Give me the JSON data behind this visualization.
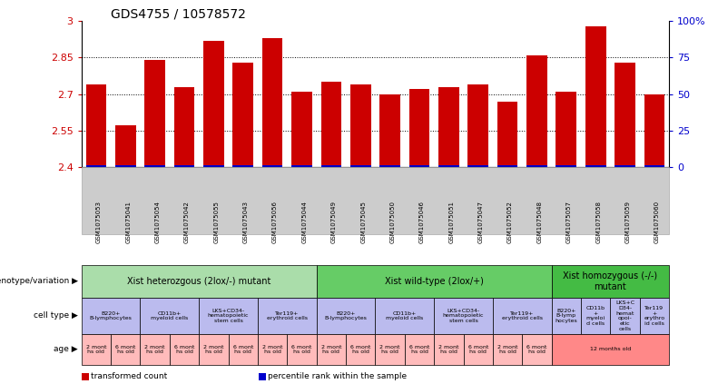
{
  "title": "GDS4755 / 10578572",
  "samples": [
    "GSM1075053",
    "GSM1075041",
    "GSM1075054",
    "GSM1075042",
    "GSM1075055",
    "GSM1075043",
    "GSM1075056",
    "GSM1075044",
    "GSM1075049",
    "GSM1075045",
    "GSM1075050",
    "GSM1075046",
    "GSM1075051",
    "GSM1075047",
    "GSM1075052",
    "GSM1075048",
    "GSM1075057",
    "GSM1075058",
    "GSM1075059",
    "GSM1075060"
  ],
  "values": [
    2.74,
    2.57,
    2.84,
    2.73,
    2.92,
    2.83,
    2.93,
    2.71,
    2.75,
    2.74,
    2.7,
    2.72,
    2.73,
    2.74,
    2.67,
    2.86,
    2.71,
    2.98,
    2.83,
    2.7
  ],
  "ylim": [
    2.4,
    3.0
  ],
  "yticks": [
    2.4,
    2.55,
    2.7,
    2.85,
    3.0
  ],
  "ytick_labels": [
    "2.4",
    "2.55",
    "2.7",
    "2.85",
    "3"
  ],
  "y2ticks": [
    0,
    25,
    50,
    75,
    100
  ],
  "y2tick_labels": [
    "0",
    "25",
    "50",
    "75",
    "100%"
  ],
  "bar_color": "#cc0000",
  "percentile_color": "#0000cc",
  "genotype_groups": [
    {
      "label": "Xist heterozgous (2lox/-) mutant",
      "start": 0,
      "end": 8,
      "color": "#aaddaa"
    },
    {
      "label": "Xist wild-type (2lox/+)",
      "start": 8,
      "end": 16,
      "color": "#66cc66"
    },
    {
      "label": "Xist homozygous (-/-)\nmutant",
      "start": 16,
      "end": 20,
      "color": "#44bb44"
    }
  ],
  "celltype_groups": [
    {
      "label": "B220+\nB-lymphocytes",
      "start": 0,
      "end": 2,
      "color": "#bbbbee"
    },
    {
      "label": "CD11b+\nmyeloid cells",
      "start": 2,
      "end": 4,
      "color": "#bbbbee"
    },
    {
      "label": "LKS+CD34-\nhematopoietic\nstem cells",
      "start": 4,
      "end": 6,
      "color": "#bbbbee"
    },
    {
      "label": "Ter119+\nerythroid cells",
      "start": 6,
      "end": 8,
      "color": "#bbbbee"
    },
    {
      "label": "B220+\nB-lymphocytes",
      "start": 8,
      "end": 10,
      "color": "#bbbbee"
    },
    {
      "label": "CD11b+\nmyeloid cells",
      "start": 10,
      "end": 12,
      "color": "#bbbbee"
    },
    {
      "label": "LKS+CD34-\nhematopoietic\nstem cells",
      "start": 12,
      "end": 14,
      "color": "#bbbbee"
    },
    {
      "label": "Ter119+\nerythroid cells",
      "start": 14,
      "end": 16,
      "color": "#bbbbee"
    },
    {
      "label": "B220+\nB-lymp\nhocytes",
      "start": 16,
      "end": 17,
      "color": "#bbbbee"
    },
    {
      "label": "CD11b\n+\nmyeloi\nd cells",
      "start": 17,
      "end": 18,
      "color": "#bbbbee"
    },
    {
      "label": "LKS+C\nD34-\nhemat\nopoi-\netic\ncells",
      "start": 18,
      "end": 19,
      "color": "#bbbbee"
    },
    {
      "label": "Ter119\n+\nerythro\nid cells",
      "start": 19,
      "end": 20,
      "color": "#bbbbee"
    }
  ],
  "age_groups": [
    {
      "label": "2 mont\nhs old",
      "start": 0,
      "end": 1,
      "color": "#ffbbbb"
    },
    {
      "label": "6 mont\nhs old",
      "start": 1,
      "end": 2,
      "color": "#ffbbbb"
    },
    {
      "label": "2 mont\nhs old",
      "start": 2,
      "end": 3,
      "color": "#ffbbbb"
    },
    {
      "label": "6 mont\nhs old",
      "start": 3,
      "end": 4,
      "color": "#ffbbbb"
    },
    {
      "label": "2 mont\nhs old",
      "start": 4,
      "end": 5,
      "color": "#ffbbbb"
    },
    {
      "label": "6 mont\nhs old",
      "start": 5,
      "end": 6,
      "color": "#ffbbbb"
    },
    {
      "label": "2 mont\nhs old",
      "start": 6,
      "end": 7,
      "color": "#ffbbbb"
    },
    {
      "label": "6 mont\nhs old",
      "start": 7,
      "end": 8,
      "color": "#ffbbbb"
    },
    {
      "label": "2 mont\nhs old",
      "start": 8,
      "end": 9,
      "color": "#ffbbbb"
    },
    {
      "label": "6 mont\nhs old",
      "start": 9,
      "end": 10,
      "color": "#ffbbbb"
    },
    {
      "label": "2 mont\nhs old",
      "start": 10,
      "end": 11,
      "color": "#ffbbbb"
    },
    {
      "label": "6 mont\nhs old",
      "start": 11,
      "end": 12,
      "color": "#ffbbbb"
    },
    {
      "label": "2 mont\nhs old",
      "start": 12,
      "end": 13,
      "color": "#ffbbbb"
    },
    {
      "label": "6 mont\nhs old",
      "start": 13,
      "end": 14,
      "color": "#ffbbbb"
    },
    {
      "label": "2 mont\nhs old",
      "start": 14,
      "end": 15,
      "color": "#ffbbbb"
    },
    {
      "label": "6 mont\nhs old",
      "start": 15,
      "end": 16,
      "color": "#ffbbbb"
    },
    {
      "label": "12 months old",
      "start": 16,
      "end": 20,
      "color": "#ff8888"
    }
  ],
  "row_labels": [
    "genotype/variation",
    "cell type",
    "age"
  ],
  "legend_items": [
    {
      "color": "#cc0000",
      "label": "transformed count"
    },
    {
      "color": "#0000cc",
      "label": "percentile rank within the sample"
    }
  ],
  "xtick_bg": "#cccccc"
}
